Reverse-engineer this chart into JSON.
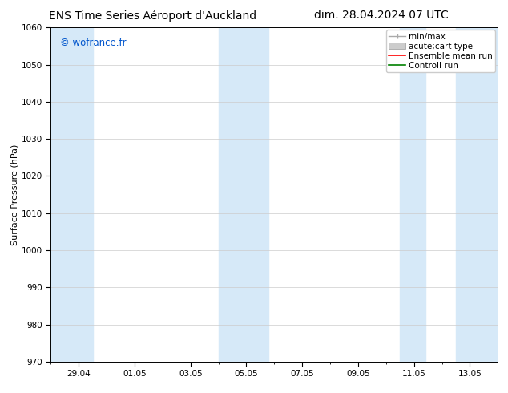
{
  "title_left": "ENS Time Series Aéroport d'Auckland",
  "title_right": "dim. 28.04.2024 07 UTC",
  "ylabel": "Surface Pressure (hPa)",
  "ylim": [
    970,
    1060
  ],
  "yticks": [
    970,
    980,
    990,
    1000,
    1010,
    1020,
    1030,
    1040,
    1050,
    1060
  ],
  "xtick_labels": [
    "29.04",
    "01.05",
    "03.05",
    "05.05",
    "07.05",
    "09.05",
    "11.05",
    "13.05"
  ],
  "watermark": "© wofrance.fr",
  "watermark_color": "#0055cc",
  "bg_color": "#ffffff",
  "plot_bg_color": "#ffffff",
  "band_color": "#d6e9f8",
  "legend_entries": [
    {
      "label": "min/max",
      "color": "#aaaaaa",
      "lw": 1.0
    },
    {
      "label": "acute;cart type",
      "color": "#cccccc",
      "lw": 6
    },
    {
      "label": "Ensemble mean run",
      "color": "#ff0000",
      "lw": 1.0
    },
    {
      "label": "Controll run",
      "color": "#008000",
      "lw": 1.0
    }
  ],
  "grid_color": "#cccccc",
  "title_fontsize": 10,
  "tick_fontsize": 7.5,
  "legend_fontsize": 7.5,
  "ylabel_fontsize": 8,
  "watermark_fontsize": 8.5
}
